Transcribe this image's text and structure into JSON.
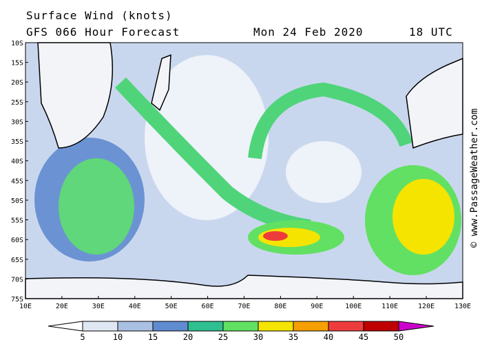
{
  "header": {
    "title": "Surface Wind (knots)",
    "model": "GFS 066 Hour Forecast",
    "date": "Mon 24 Feb 2020",
    "time": "18 UTC"
  },
  "lat_labels": [
    "10S",
    "15S",
    "20S",
    "25S",
    "30S",
    "35S",
    "40S",
    "45S",
    "50S",
    "55S",
    "60S",
    "65S",
    "70S",
    "75S"
  ],
  "lon_labels": [
    "10E",
    "20E",
    "30E",
    "40E",
    "50E",
    "60E",
    "70E",
    "80E",
    "90E",
    "100E",
    "110E",
    "120E",
    "130E"
  ],
  "colorbar": {
    "labels": [
      "5",
      "10",
      "15",
      "20",
      "25",
      "30",
      "35",
      "40",
      "45",
      "50"
    ],
    "colors": [
      "#dfe7f3",
      "#aac0e2",
      "#5f8bd0",
      "#2fbf90",
      "#62e063",
      "#f5e400",
      "#f5a000",
      "#ee3c3c",
      "#be0000",
      "#cc00cc"
    ]
  },
  "credit": "© www.PassageWeather.com"
}
